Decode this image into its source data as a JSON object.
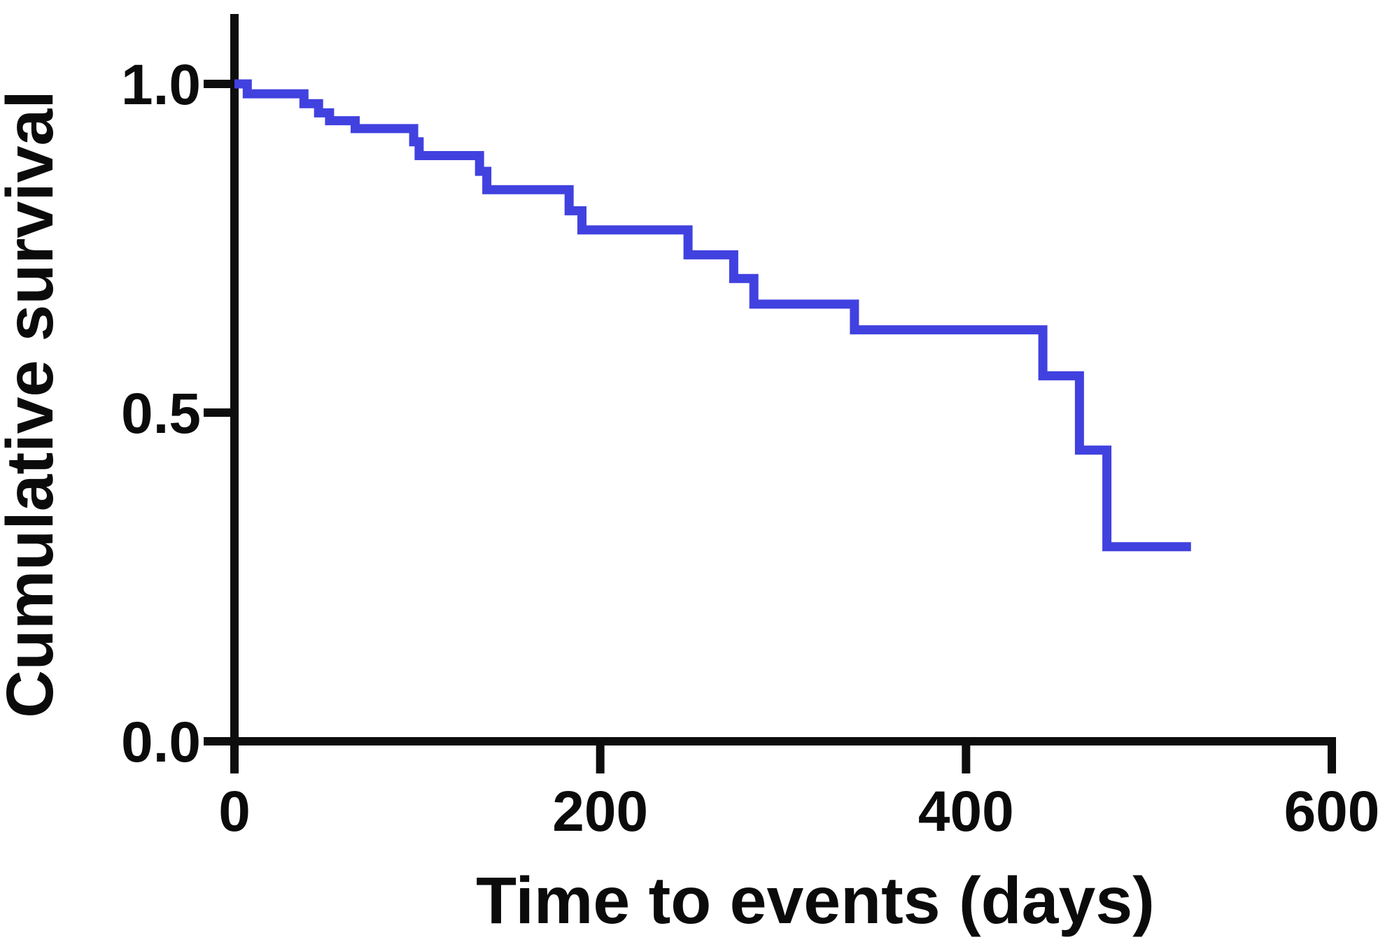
{
  "figure": {
    "background": "#ffffff",
    "axis_color": "#0d0d0d",
    "curve_color": "#4141e0"
  },
  "chart_data": {
    "type": "line",
    "subtype": "kaplan-meier-step-curve",
    "title": "",
    "xlabel": "Time to events (days)",
    "ylabel": "Cumulative survival",
    "xlim": [
      0,
      600
    ],
    "ylim": [
      0.0,
      1.0
    ],
    "x_ticks": [
      0,
      200,
      400,
      600
    ],
    "y_ticks": [
      0.0,
      0.5,
      1.0
    ],
    "x_tick_labels": [
      "0",
      "200",
      "400",
      "600"
    ],
    "y_tick_labels": [
      "0.0",
      "0.5",
      "1.0"
    ],
    "grid": false,
    "legend_position": "none",
    "series": [
      {
        "name": "Cumulative survival",
        "color": "#4141e0",
        "step_mode": "post",
        "points": [
          {
            "t": 0,
            "s": 1.0
          },
          {
            "t": 7,
            "s": 0.985
          },
          {
            "t": 38,
            "s": 0.97
          },
          {
            "t": 46,
            "s": 0.956
          },
          {
            "t": 52,
            "s": 0.944
          },
          {
            "t": 66,
            "s": 0.932
          },
          {
            "t": 98,
            "s": 0.912
          },
          {
            "t": 101,
            "s": 0.891
          },
          {
            "t": 134,
            "s": 0.867
          },
          {
            "t": 138,
            "s": 0.839
          },
          {
            "t": 183,
            "s": 0.807
          },
          {
            "t": 190,
            "s": 0.778
          },
          {
            "t": 248,
            "s": 0.74
          },
          {
            "t": 273,
            "s": 0.704
          },
          {
            "t": 284,
            "s": 0.665
          },
          {
            "t": 339,
            "s": 0.626
          },
          {
            "t": 442,
            "s": 0.556
          },
          {
            "t": 462,
            "s": 0.443
          },
          {
            "t": 477,
            "s": 0.296
          },
          {
            "t": 523,
            "s": 0.296
          }
        ]
      }
    ]
  }
}
